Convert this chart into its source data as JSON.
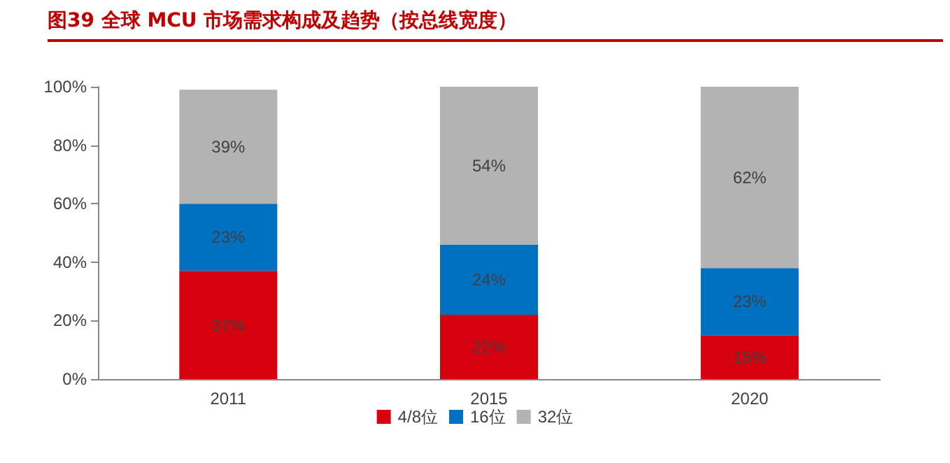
{
  "chart_data": {
    "type": "bar",
    "title": "图39  全球 MCU 市场需求构成及趋势（按总线宽度）",
    "categories": [
      "2011",
      "2015",
      "2020"
    ],
    "stacked": true,
    "series": [
      {
        "name": "4/8位",
        "color": "#d7000f",
        "values": [
          37,
          22,
          15
        ],
        "value_labels": [
          "37%",
          "22%",
          "15%"
        ]
      },
      {
        "name": "16位",
        "color": "#0070c0",
        "values": [
          23,
          24,
          23
        ],
        "value_labels": [
          "23%",
          "24%",
          "23%"
        ]
      },
      {
        "name": "32位",
        "color": "#b3b3b3",
        "values": [
          39,
          54,
          62
        ],
        "value_labels": [
          "39%",
          "54%",
          "62%"
        ]
      }
    ],
    "ylim": [
      0,
      100
    ],
    "yticks": [
      {
        "value": 0,
        "label": "0%"
      },
      {
        "value": 20,
        "label": "20%"
      },
      {
        "value": 40,
        "label": "40%"
      },
      {
        "value": 60,
        "label": "60%"
      },
      {
        "value": 80,
        "label": "80%"
      },
      {
        "value": 100,
        "label": "100%"
      }
    ],
    "grid": false,
    "legend": "bottom"
  }
}
